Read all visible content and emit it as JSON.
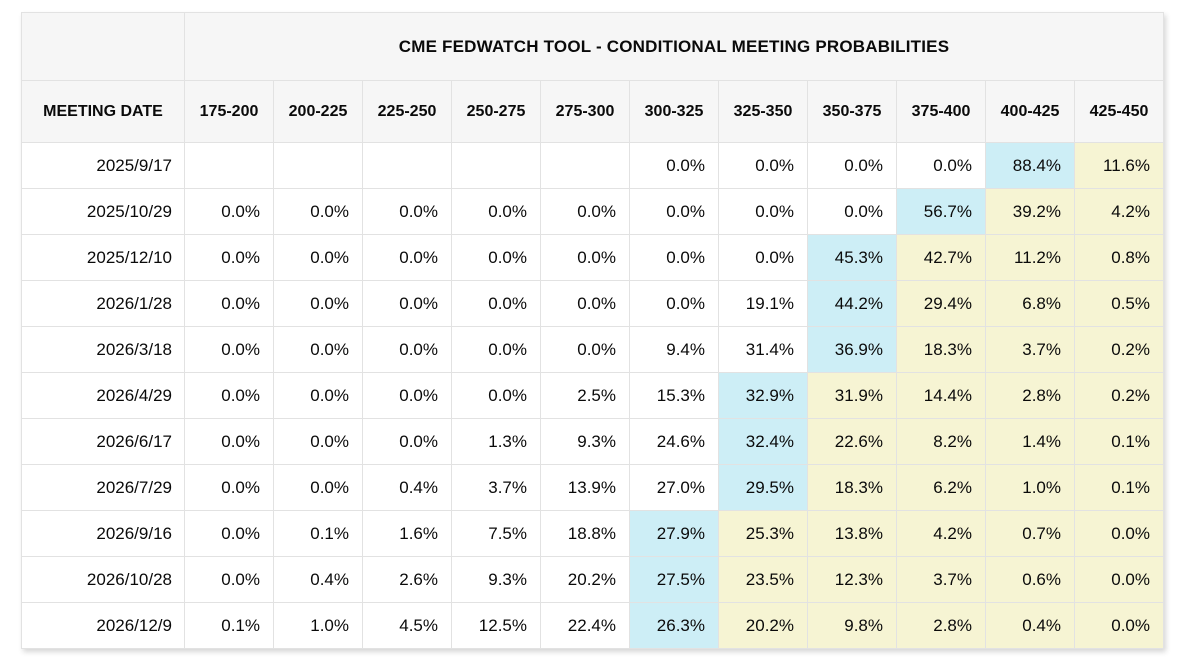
{
  "table": {
    "title": "CME FEDWATCH TOOL - CONDITIONAL MEETING PROBABILITIES",
    "meeting_date_header": "MEETING DATE",
    "rate_columns": [
      "175-200",
      "200-225",
      "225-250",
      "250-275",
      "275-300",
      "300-325",
      "325-350",
      "350-375",
      "375-400",
      "400-425",
      "425-450"
    ],
    "colors": {
      "header_bg": "#f6f6f6",
      "highlight_blue": "#cdeef6",
      "highlight_yellow": "#f6f4d3",
      "grid_border": "#e2e2e2",
      "outer_border": "#d2d2d2"
    },
    "rows": [
      {
        "date": "2025/9/17",
        "values": [
          "",
          "",
          "",
          "",
          "",
          "0.0%",
          "0.0%",
          "0.0%",
          "0.0%",
          "88.4%",
          "11.6%"
        ],
        "highlights": [
          "",
          "",
          "",
          "",
          "",
          "",
          "",
          "",
          "",
          "blue",
          "yellow"
        ]
      },
      {
        "date": "2025/10/29",
        "values": [
          "0.0%",
          "0.0%",
          "0.0%",
          "0.0%",
          "0.0%",
          "0.0%",
          "0.0%",
          "0.0%",
          "56.7%",
          "39.2%",
          "4.2%"
        ],
        "highlights": [
          "",
          "",
          "",
          "",
          "",
          "",
          "",
          "",
          "blue",
          "yellow",
          "yellow"
        ]
      },
      {
        "date": "2025/12/10",
        "values": [
          "0.0%",
          "0.0%",
          "0.0%",
          "0.0%",
          "0.0%",
          "0.0%",
          "0.0%",
          "45.3%",
          "42.7%",
          "11.2%",
          "0.8%"
        ],
        "highlights": [
          "",
          "",
          "",
          "",
          "",
          "",
          "",
          "blue",
          "yellow",
          "yellow",
          "yellow"
        ]
      },
      {
        "date": "2026/1/28",
        "values": [
          "0.0%",
          "0.0%",
          "0.0%",
          "0.0%",
          "0.0%",
          "0.0%",
          "19.1%",
          "44.2%",
          "29.4%",
          "6.8%",
          "0.5%"
        ],
        "highlights": [
          "",
          "",
          "",
          "",
          "",
          "",
          "",
          "blue",
          "yellow",
          "yellow",
          "yellow"
        ]
      },
      {
        "date": "2026/3/18",
        "values": [
          "0.0%",
          "0.0%",
          "0.0%",
          "0.0%",
          "0.0%",
          "9.4%",
          "31.4%",
          "36.9%",
          "18.3%",
          "3.7%",
          "0.2%"
        ],
        "highlights": [
          "",
          "",
          "",
          "",
          "",
          "",
          "",
          "blue",
          "yellow",
          "yellow",
          "yellow"
        ]
      },
      {
        "date": "2026/4/29",
        "values": [
          "0.0%",
          "0.0%",
          "0.0%",
          "0.0%",
          "2.5%",
          "15.3%",
          "32.9%",
          "31.9%",
          "14.4%",
          "2.8%",
          "0.2%"
        ],
        "highlights": [
          "",
          "",
          "",
          "",
          "",
          "",
          "blue",
          "yellow",
          "yellow",
          "yellow",
          "yellow"
        ]
      },
      {
        "date": "2026/6/17",
        "values": [
          "0.0%",
          "0.0%",
          "0.0%",
          "1.3%",
          "9.3%",
          "24.6%",
          "32.4%",
          "22.6%",
          "8.2%",
          "1.4%",
          "0.1%"
        ],
        "highlights": [
          "",
          "",
          "",
          "",
          "",
          "",
          "blue",
          "yellow",
          "yellow",
          "yellow",
          "yellow"
        ]
      },
      {
        "date": "2026/7/29",
        "values": [
          "0.0%",
          "0.0%",
          "0.4%",
          "3.7%",
          "13.9%",
          "27.0%",
          "29.5%",
          "18.3%",
          "6.2%",
          "1.0%",
          "0.1%"
        ],
        "highlights": [
          "",
          "",
          "",
          "",
          "",
          "",
          "blue",
          "yellow",
          "yellow",
          "yellow",
          "yellow"
        ]
      },
      {
        "date": "2026/9/16",
        "values": [
          "0.0%",
          "0.1%",
          "1.6%",
          "7.5%",
          "18.8%",
          "27.9%",
          "25.3%",
          "13.8%",
          "4.2%",
          "0.7%",
          "0.0%"
        ],
        "highlights": [
          "",
          "",
          "",
          "",
          "",
          "blue",
          "yellow",
          "yellow",
          "yellow",
          "yellow",
          "yellow"
        ]
      },
      {
        "date": "2026/10/28",
        "values": [
          "0.0%",
          "0.4%",
          "2.6%",
          "9.3%",
          "20.2%",
          "27.5%",
          "23.5%",
          "12.3%",
          "3.7%",
          "0.6%",
          "0.0%"
        ],
        "highlights": [
          "",
          "",
          "",
          "",
          "",
          "blue",
          "yellow",
          "yellow",
          "yellow",
          "yellow",
          "yellow"
        ]
      },
      {
        "date": "2026/12/9",
        "values": [
          "0.1%",
          "1.0%",
          "4.5%",
          "12.5%",
          "22.4%",
          "26.3%",
          "20.2%",
          "9.8%",
          "2.8%",
          "0.4%",
          "0.0%"
        ],
        "highlights": [
          "",
          "",
          "",
          "",
          "",
          "blue",
          "yellow",
          "yellow",
          "yellow",
          "yellow",
          "yellow"
        ]
      }
    ]
  }
}
